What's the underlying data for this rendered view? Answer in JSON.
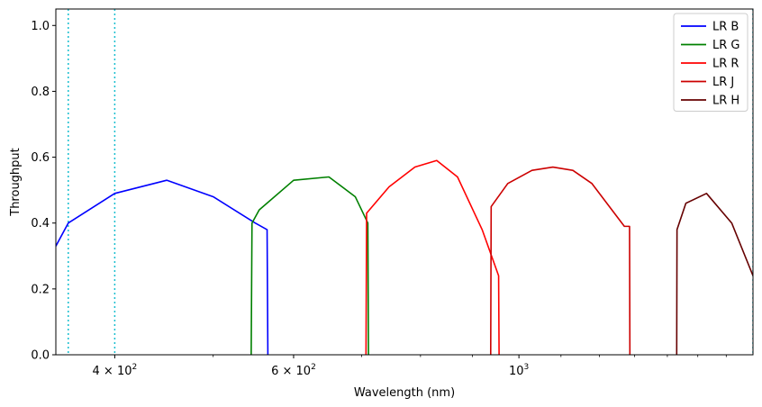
{
  "chart_data": {
    "type": "line",
    "title": "",
    "xlabel": "Wavelength (nm)",
    "ylabel": "Throughput",
    "xscale": "log",
    "xlim": [
      350,
      1700
    ],
    "ylim": [
      0,
      1.05
    ],
    "grid": false,
    "legend_position": "top-right",
    "x_ticks": [
      {
        "value": 400,
        "base": "4",
        "exp": "2"
      },
      {
        "value": 600,
        "base": "6",
        "exp": "2"
      },
      {
        "value": 1000,
        "base": "10",
        "exp": "3"
      }
    ],
    "y_ticks": [
      "0.0",
      "0.2",
      "0.4",
      "0.6",
      "0.8",
      "1.0"
    ],
    "vlines": [
      {
        "x": 360,
        "color": "#17becf",
        "style": "dotted"
      },
      {
        "x": 400,
        "color": "#17becf",
        "style": "dotted"
      },
      {
        "x": 1700,
        "color": "#17becf",
        "style": "dotted"
      }
    ],
    "series": [
      {
        "name": "LR B",
        "color": "#0000ff",
        "x": [
          350,
          360,
          400,
          450,
          500,
          550,
          565,
          566
        ],
        "y": [
          0.33,
          0.4,
          0.49,
          0.53,
          0.48,
          0.4,
          0.38,
          0.0
        ]
      },
      {
        "name": "LR G",
        "color": "#008000",
        "x": [
          545,
          546,
          555,
          600,
          650,
          690,
          710,
          711
        ],
        "y": [
          0.0,
          0.4,
          0.44,
          0.53,
          0.54,
          0.48,
          0.4,
          0.0
        ]
      },
      {
        "name": "LR R",
        "color": "#ff0000",
        "x": [
          707,
          708,
          745,
          790,
          830,
          870,
          920,
          955,
          956
        ],
        "y": [
          0.0,
          0.43,
          0.51,
          0.57,
          0.59,
          0.54,
          0.38,
          0.24,
          0.0
        ]
      },
      {
        "name": "LR J",
        "color": "#cc0000",
        "x": [
          938,
          939,
          975,
          1030,
          1080,
          1130,
          1180,
          1270,
          1285,
          1286
        ],
        "y": [
          0.0,
          0.45,
          0.52,
          0.56,
          0.57,
          0.56,
          0.52,
          0.39,
          0.39,
          0.0
        ]
      },
      {
        "name": "LR H",
        "color": "#660000",
        "x": [
          1430,
          1431,
          1460,
          1530,
          1620,
          1700
        ],
        "y": [
          0.0,
          0.38,
          0.46,
          0.49,
          0.4,
          0.24
        ]
      }
    ]
  }
}
